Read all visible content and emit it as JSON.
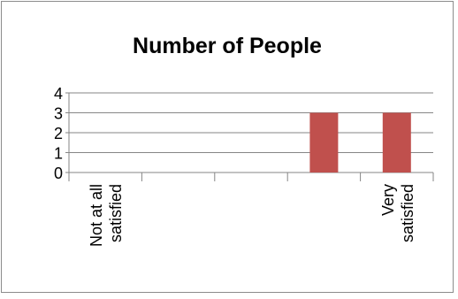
{
  "chart_data": {
    "type": "bar",
    "title": "Number of People",
    "categories": [
      "Not at all satisfied",
      "",
      "",
      "",
      "Very satisfied"
    ],
    "category_labels": [
      [
        "Not at all",
        "satisfied"
      ],
      [],
      [],
      [],
      [
        "Very",
        "satisfied"
      ]
    ],
    "values": [
      0,
      0,
      0,
      3,
      3
    ],
    "ylim": [
      0,
      4
    ],
    "yticks": [
      "0",
      "1",
      "2",
      "3",
      "4"
    ],
    "grid": true,
    "legend": "none",
    "colors": {
      "bar": "#c0504d",
      "grid": "#868686",
      "axis": "#868686"
    }
  }
}
